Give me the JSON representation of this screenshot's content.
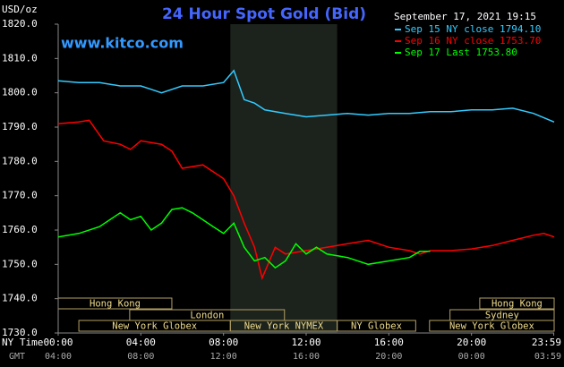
{
  "chart_data": {
    "type": "line",
    "title": "24 Hour Spot Gold (Bid)",
    "y_label": "USD/oz",
    "watermark": "www.kitco.com",
    "timestamp": "September 17, 2021 19:15",
    "x_label": "NY Time",
    "x2_label": "GMT",
    "xlim": [
      0,
      24
    ],
    "xticks": [
      {
        "value": 0,
        "label": "00:00"
      },
      {
        "value": 4,
        "label": "04:00"
      },
      {
        "value": 8,
        "label": "08:00"
      },
      {
        "value": 12,
        "label": "12:00"
      },
      {
        "value": 16,
        "label": "16:00"
      },
      {
        "value": 20,
        "label": "20:00"
      },
      {
        "value": 23.98,
        "label": "23:59"
      }
    ],
    "gmt_labels": [
      "04:00",
      "08:00",
      "12:00",
      "16:00",
      "20:00",
      "00:00",
      "03:59"
    ],
    "ylim": [
      1730,
      1820
    ],
    "yticks": [
      {
        "value": 1730,
        "label": "1730.0"
      },
      {
        "value": 1740,
        "label": "1740.0"
      },
      {
        "value": 1750,
        "label": "1750.0"
      },
      {
        "value": 1760,
        "label": "1760.0"
      },
      {
        "value": 1770,
        "label": "1770.0"
      },
      {
        "value": 1780,
        "label": "1780.0"
      },
      {
        "value": 1790,
        "label": "1790.0"
      },
      {
        "value": 1800,
        "label": "1800.0"
      },
      {
        "value": 1810,
        "label": "1810.0"
      },
      {
        "value": 1820,
        "label": "1820.0"
      }
    ],
    "shaded_range": [
      8.33,
      13.5
    ],
    "sessions": [
      {
        "name": "Hong Kong",
        "start": 0,
        "end": 5.5
      },
      {
        "name": "London",
        "start": 3.46,
        "end": 10.95
      },
      {
        "name": "New York Globex",
        "start": 1,
        "end": 8.33
      },
      {
        "name": "New York NYMEX",
        "start": 8.33,
        "end": 13.5
      },
      {
        "name": "NY Globex",
        "start": 13.5,
        "end": 17.3
      },
      {
        "name": "Sydney",
        "start": 18.96,
        "end": 24
      },
      {
        "name": "Hong Kong",
        "start": 20.4,
        "end": 24
      },
      {
        "name": "New York Globex",
        "start": 17.97,
        "end": 24
      }
    ],
    "series": [
      {
        "name": "Sep 15 NY close 1794.10",
        "color": "#33ccff",
        "x": [
          0,
          1,
          2,
          3,
          4,
          4.5,
          5,
          6,
          7,
          8,
          8.5,
          9,
          9.5,
          10,
          11,
          12,
          13,
          14,
          15,
          16,
          17,
          18,
          19,
          20,
          21,
          22,
          23,
          24
        ],
        "values": [
          1803.5,
          1803,
          1803,
          1802,
          1802,
          1801,
          1800,
          1802,
          1802,
          1803,
          1806.5,
          1798,
          1797,
          1795,
          1794,
          1793,
          1793.5,
          1794,
          1793.5,
          1794,
          1794,
          1794.5,
          1794.5,
          1795,
          1795,
          1795.5,
          1794,
          1791.5
        ]
      },
      {
        "name": "Sep 16 NY close 1753.70",
        "color": "#ff0000",
        "x": [
          0,
          1,
          1.5,
          2.2,
          3,
          3.5,
          4,
          5,
          5.5,
          6,
          7,
          8,
          8.5,
          9,
          9.5,
          9.87,
          10.5,
          11,
          12,
          13,
          14,
          15,
          16,
          17,
          17.5,
          18,
          19,
          20,
          21,
          22,
          23,
          23.5,
          24
        ],
        "values": [
          1791,
          1791.5,
          1792,
          1786,
          1785,
          1783.5,
          1786,
          1785,
          1783,
          1778,
          1779,
          1775,
          1770,
          1762,
          1755,
          1746,
          1755,
          1753,
          1754,
          1755,
          1756,
          1757,
          1755,
          1754,
          1753,
          1754,
          1754,
          1754.5,
          1755.5,
          1757,
          1758.5,
          1759,
          1758
        ]
      },
      {
        "name": "Sep 17 Last 1753.80",
        "color": "#00ff00",
        "x": [
          0,
          1,
          2,
          2.5,
          3,
          3.5,
          4,
          4.5,
          5,
          5.5,
          6,
          6.5,
          7,
          7.5,
          8,
          8.5,
          9,
          9.5,
          10,
          10.5,
          11,
          11.5,
          12,
          12.5,
          13,
          14,
          15,
          16,
          17,
          17.5,
          18
        ],
        "values": [
          1758,
          1759,
          1761,
          1763,
          1765,
          1763,
          1764,
          1760,
          1762,
          1766,
          1766.5,
          1765,
          1763,
          1761,
          1759,
          1762,
          1755,
          1751,
          1752,
          1749,
          1751,
          1756,
          1753,
          1755,
          1753,
          1752,
          1750,
          1751,
          1752,
          1753.8,
          1753.8
        ]
      }
    ]
  }
}
